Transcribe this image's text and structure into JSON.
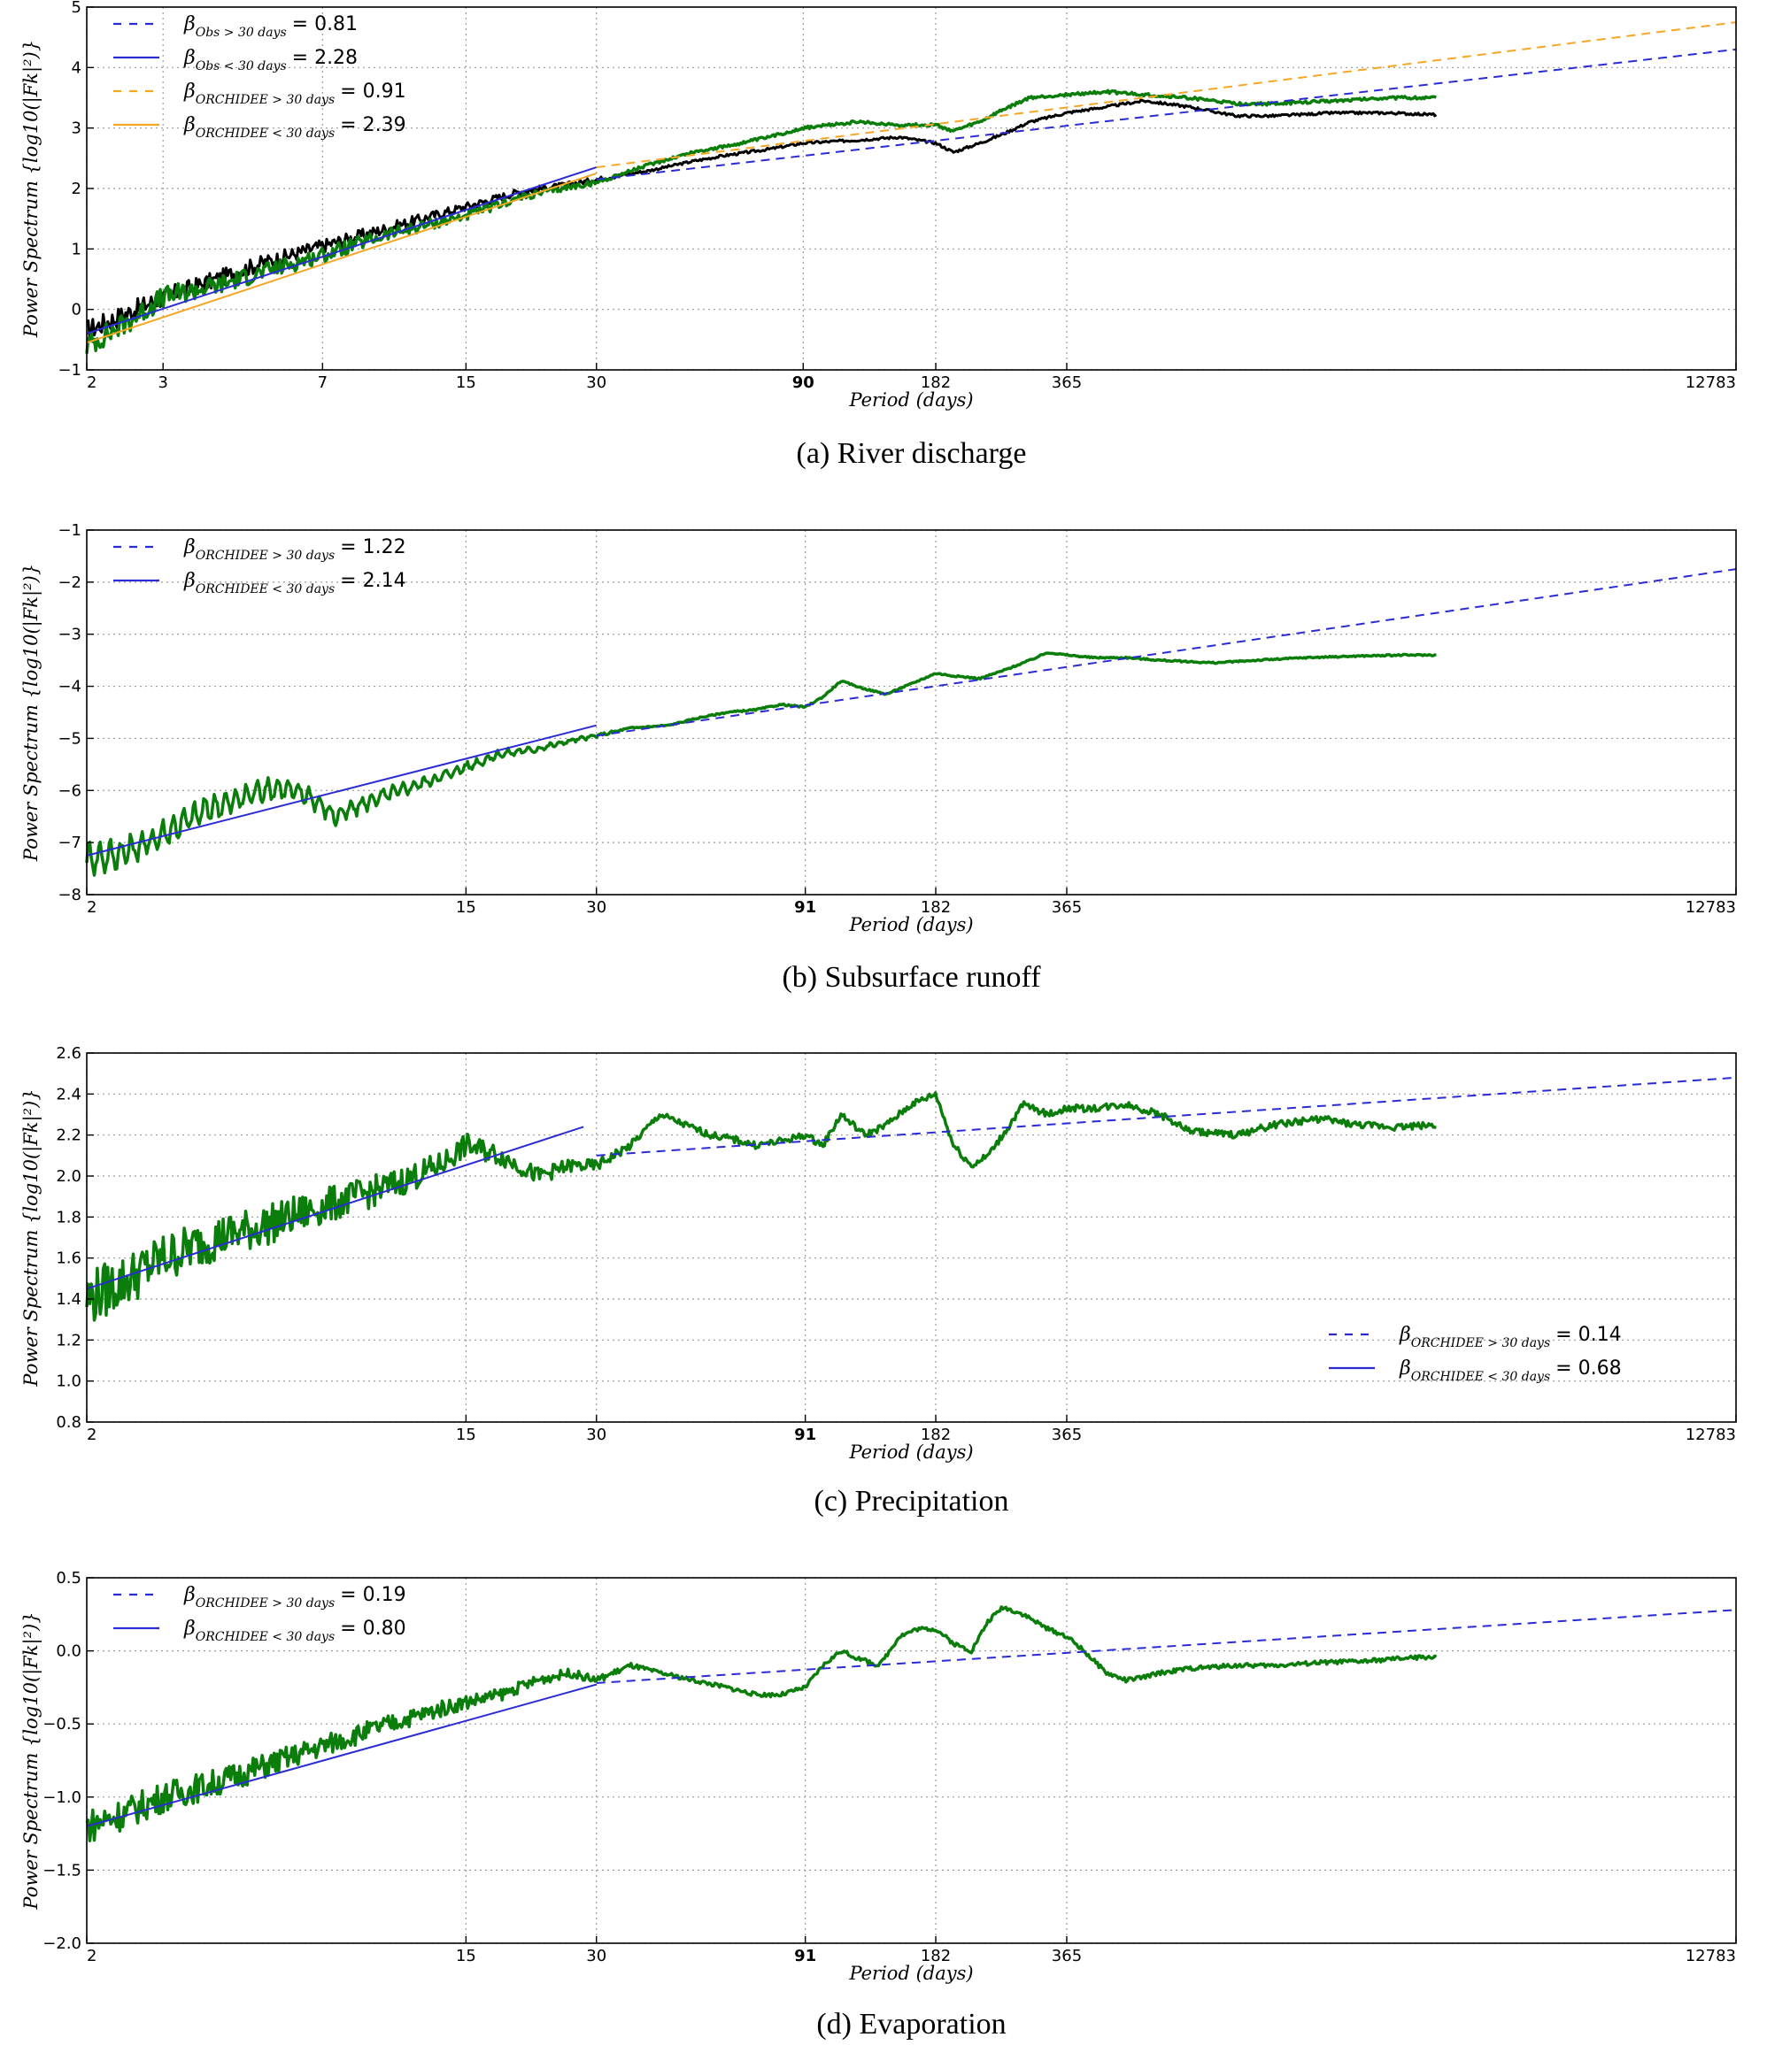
{
  "figure": {
    "captions": [
      "(a) River discharge",
      "(b) Subsurface runoff",
      "(c) Precipitation",
      "(d) Evaporation"
    ]
  },
  "colors": {
    "obs": "#000000",
    "orchidee": "#0a7d0a",
    "fit_blue": "#2b2bd6",
    "fit_orange": "#f5a623",
    "grid": "#9a9a9a"
  },
  "chart_data": [
    {
      "type": "line",
      "panel": "a",
      "caption": "(a) River discharge",
      "xscale": "log",
      "xlabel": "Period (days)",
      "ylabel": "Power Spectrum {log10(|Fk|²)}",
      "xlim": [
        2,
        12783
      ],
      "ylim": [
        -1,
        5
      ],
      "xticks": [
        2,
        3,
        7,
        15,
        30,
        90,
        182,
        365,
        12783
      ],
      "xtick_labels": [
        "2",
        "3",
        "7",
        "15",
        "30",
        "90",
        "182",
        "365",
        "12783"
      ],
      "yticks": [
        -1,
        0,
        1,
        2,
        3,
        4,
        5
      ],
      "ytick_labels": [
        "−1",
        "0",
        "1",
        "2",
        "3",
        "4",
        "5"
      ],
      "grid": true,
      "legend_position": "upper-left",
      "legend": [
        {
          "sym": "β",
          "sub": "Obs > 30 days",
          "value": "= 0.81",
          "color": "#2b2bd6",
          "dash": true
        },
        {
          "sym": "β",
          "sub": "Obs < 30 days",
          "value": "= 2.28",
          "color": "#2b2bd6",
          "dash": false
        },
        {
          "sym": "β",
          "sub": "ORCHIDEE > 30 days",
          "value": "= 0.91",
          "color": "#f5a623",
          "dash": true
        },
        {
          "sym": "β",
          "sub": "ORCHIDEE < 30 days",
          "value": "= 2.39",
          "color": "#f5a623",
          "dash": false
        }
      ],
      "series": [
        {
          "role": "obs",
          "color": "#000000",
          "width": 3,
          "x": [
            2,
            2.5,
            3,
            4,
            5,
            7,
            10,
            15,
            20,
            25,
            30,
            40,
            50,
            60,
            75,
            90,
            120,
            150,
            182,
            200,
            230,
            260,
            300,
            365,
            450,
            550,
            700,
            900,
            1100,
            1500,
            2000,
            2600
          ],
          "y": [
            -0.35,
            -0.05,
            0.2,
            0.5,
            0.75,
            1.05,
            1.35,
            1.7,
            1.95,
            2.05,
            2.15,
            2.3,
            2.45,
            2.55,
            2.65,
            2.75,
            2.8,
            2.85,
            2.75,
            2.6,
            2.75,
            2.9,
            3.1,
            3.25,
            3.35,
            3.45,
            3.35,
            3.2,
            3.2,
            3.25,
            3.25,
            3.22
          ],
          "noise": 0.18
        },
        {
          "role": "orchidee",
          "color": "#0a7d0a",
          "width": 3.5,
          "x": [
            2,
            2.5,
            3,
            4,
            5,
            7,
            10,
            15,
            20,
            25,
            30,
            40,
            50,
            60,
            75,
            90,
            120,
            150,
            182,
            200,
            230,
            260,
            300,
            365,
            450,
            550,
            700,
            900,
            1100,
            1500,
            2000,
            2600
          ],
          "y": [
            -0.6,
            -0.2,
            0.2,
            0.4,
            0.6,
            0.9,
            1.25,
            1.55,
            1.85,
            2.0,
            2.1,
            2.4,
            2.6,
            2.7,
            2.85,
            3.0,
            3.1,
            3.05,
            3.05,
            2.95,
            3.1,
            3.3,
            3.5,
            3.55,
            3.6,
            3.55,
            3.5,
            3.4,
            3.4,
            3.45,
            3.5,
            3.5
          ],
          "noise": 0.2
        }
      ],
      "fits": [
        {
          "color": "#2b2bd6",
          "dash": false,
          "x": [
            2,
            30
          ],
          "y": [
            -0.4,
            2.35
          ]
        },
        {
          "color": "#f5a623",
          "dash": false,
          "x": [
            2,
            30
          ],
          "y": [
            -0.55,
            2.25
          ]
        },
        {
          "color": "#2b2bd6",
          "dash": true,
          "x": [
            30,
            12783
          ],
          "y": [
            2.15,
            4.3
          ]
        },
        {
          "color": "#f5a623",
          "dash": true,
          "x": [
            30,
            12783
          ],
          "y": [
            2.35,
            4.75
          ]
        }
      ]
    },
    {
      "type": "line",
      "panel": "b",
      "caption": "(b) Subsurface runoff",
      "xscale": "log",
      "xlabel": "Period (days)",
      "ylabel": "Power Spectrum {log10(|Fk|²)}",
      "xlim": [
        2,
        12783
      ],
      "ylim": [
        -8,
        -1
      ],
      "xticks": [
        2,
        15,
        30,
        91,
        182,
        365,
        12783
      ],
      "xtick_labels": [
        "2",
        "15",
        "30",
        "91",
        "182",
        "365",
        "12783"
      ],
      "yticks": [
        -8,
        -7,
        -6,
        -5,
        -4,
        -3,
        -2,
        -1
      ],
      "ytick_labels": [
        "−8",
        "−7",
        "−6",
        "−5",
        "−4",
        "−3",
        "−2",
        "−1"
      ],
      "grid": true,
      "legend_position": "upper-left",
      "legend": [
        {
          "sym": "β",
          "sub": "ORCHIDEE > 30 days",
          "value": "= 1.22",
          "color": "#2b2bd6",
          "dash": true
        },
        {
          "sym": "β",
          "sub": "ORCHIDEE < 30 days",
          "value": "= 2.14",
          "color": "#2b2bd6",
          "dash": false
        }
      ],
      "series": [
        {
          "role": "orchidee",
          "color": "#0a7d0a",
          "width": 3.5,
          "x": [
            2,
            2.3,
            2.7,
            3.2,
            3.8,
            4.4,
            5.0,
            5.6,
            6.5,
            7.5,
            9,
            11,
            13,
            15,
            18,
            22,
            26,
            30,
            36,
            44,
            52,
            60,
            70,
            80,
            91,
            100,
            110,
            125,
            140,
            160,
            182,
            200,
            230,
            260,
            300,
            330,
            365,
            420,
            500,
            600,
            800,
            1000,
            1300,
            1700,
            2200,
            2600
          ],
          "y": [
            -7.3,
            -7.25,
            -7.05,
            -6.7,
            -6.35,
            -6.2,
            -6.0,
            -5.95,
            -6.1,
            -6.5,
            -6.2,
            -5.95,
            -5.75,
            -5.55,
            -5.3,
            -5.2,
            -5.05,
            -4.95,
            -4.8,
            -4.75,
            -4.6,
            -4.5,
            -4.45,
            -4.35,
            -4.4,
            -4.2,
            -3.9,
            -4.05,
            -4.15,
            -3.95,
            -3.75,
            -3.8,
            -3.85,
            -3.7,
            -3.5,
            -3.35,
            -3.4,
            -3.45,
            -3.45,
            -3.5,
            -3.55,
            -3.5,
            -3.45,
            -3.42,
            -3.4,
            -3.4
          ],
          "noise": 0.12,
          "wave": 0.3
        },
        {
          "role": "fit",
          "color": "#2b2bd6",
          "width": 2,
          "dash": false,
          "x": [
            2,
            30
          ],
          "y": [
            -7.25,
            -4.75
          ]
        }
      ],
      "fits": [
        {
          "color": "#2b2bd6",
          "dash": false,
          "x": [
            2,
            30
          ],
          "y": [
            -7.25,
            -4.75
          ]
        },
        {
          "color": "#2b2bd6",
          "dash": true,
          "x": [
            30,
            12783
          ],
          "y": [
            -4.95,
            -1.75
          ]
        }
      ]
    },
    {
      "type": "line",
      "panel": "c",
      "caption": "(c) Precipitation",
      "xscale": "log",
      "xlabel": "Period (days)",
      "ylabel": "Power Spectrum {log10(|Fk|²)}",
      "xlim": [
        2,
        12783
      ],
      "ylim": [
        0.8,
        2.6
      ],
      "xticks": [
        2,
        15,
        30,
        91,
        182,
        365,
        12783
      ],
      "xtick_labels": [
        "2",
        "15",
        "30",
        "91",
        "182",
        "365",
        "12783"
      ],
      "yticks": [
        0.8,
        1.0,
        1.2,
        1.4,
        1.6,
        1.8,
        2.0,
        2.2,
        2.4,
        2.6
      ],
      "ytick_labels": [
        "0.8",
        "1.0",
        "1.2",
        "1.4",
        "1.6",
        "1.8",
        "2.0",
        "2.2",
        "2.4",
        "2.6"
      ],
      "grid": true,
      "legend_position": "lower-right",
      "legend": [
        {
          "sym": "β",
          "sub": "ORCHIDEE > 30 days",
          "value": "= 0.14",
          "color": "#2b2bd6",
          "dash": true
        },
        {
          "sym": "β",
          "sub": "ORCHIDEE < 30 days",
          "value": "= 0.68",
          "color": "#2b2bd6",
          "dash": false
        }
      ],
      "series": [
        {
          "role": "orchidee",
          "color": "#0a7d0a",
          "width": 3.5,
          "x": [
            2,
            2.5,
            3,
            4,
            5,
            7,
            10,
            13,
            15,
            18,
            22,
            26,
            30,
            36,
            42,
            48,
            55,
            62,
            70,
            80,
            91,
            100,
            110,
            125,
            140,
            160,
            182,
            200,
            220,
            240,
            260,
            290,
            330,
            365,
            420,
            500,
            600,
            700,
            900,
            1100,
            1400,
            1700,
            2100,
            2600
          ],
          "y": [
            1.4,
            1.5,
            1.6,
            1.7,
            1.75,
            1.85,
            1.95,
            2.05,
            2.15,
            2.1,
            2.0,
            2.05,
            2.05,
            2.15,
            2.3,
            2.25,
            2.2,
            2.18,
            2.15,
            2.17,
            2.2,
            2.15,
            2.3,
            2.2,
            2.25,
            2.35,
            2.4,
            2.15,
            2.05,
            2.1,
            2.2,
            2.35,
            2.3,
            2.33,
            2.33,
            2.35,
            2.3,
            2.22,
            2.2,
            2.25,
            2.28,
            2.25,
            2.24,
            2.25
          ],
          "noise": 0.14
        }
      ],
      "fits": [
        {
          "color": "#2b2bd6",
          "dash": false,
          "x": [
            2,
            28
          ],
          "y": [
            1.45,
            2.24
          ]
        },
        {
          "color": "#2b2bd6",
          "dash": true,
          "x": [
            30,
            12783
          ],
          "y": [
            2.1,
            2.48
          ]
        }
      ]
    },
    {
      "type": "line",
      "panel": "d",
      "caption": "(d) Evaporation",
      "xscale": "log",
      "xlabel": "Period (days)",
      "ylabel": "Power Spectrum {log10(|Fk|²)}",
      "xlim": [
        2,
        12783
      ],
      "ylim": [
        -2.0,
        0.5
      ],
      "xticks": [
        2,
        15,
        30,
        91,
        182,
        365,
        12783
      ],
      "xtick_labels": [
        "2",
        "15",
        "30",
        "91",
        "182",
        "365",
        "12783"
      ],
      "yticks": [
        -2.0,
        -1.5,
        -1.0,
        -0.5,
        0.0,
        0.5
      ],
      "ytick_labels": [
        "−2.0",
        "−1.5",
        "−1.0",
        "−0.5",
        "0.0",
        "0.5"
      ],
      "grid": true,
      "legend_position": "upper-left",
      "legend": [
        {
          "sym": "β",
          "sub": "ORCHIDEE > 30 days",
          "value": "= 0.19",
          "color": "#2b2bd6",
          "dash": true
        },
        {
          "sym": "β",
          "sub": "ORCHIDEE < 30 days",
          "value": "= 0.80",
          "color": "#2b2bd6",
          "dash": false
        }
      ],
      "series": [
        {
          "role": "orchidee",
          "color": "#0a7d0a",
          "width": 3.5,
          "x": [
            2,
            2.5,
            3,
            4,
            5,
            7,
            10,
            13,
            15,
            18,
            22,
            26,
            30,
            36,
            42,
            50,
            60,
            70,
            80,
            91,
            100,
            110,
            120,
            135,
            150,
            165,
            182,
            200,
            220,
            240,
            260,
            290,
            330,
            365,
            400,
            450,
            500,
            550,
            600,
            700,
            900,
            1100,
            1400,
            1800,
            2200,
            2600
          ],
          "y": [
            -1.2,
            -1.1,
            -1.0,
            -0.9,
            -0.8,
            -0.65,
            -0.5,
            -0.4,
            -0.35,
            -0.3,
            -0.2,
            -0.15,
            -0.2,
            -0.1,
            -0.15,
            -0.2,
            -0.25,
            -0.3,
            -0.3,
            -0.25,
            -0.1,
            0.0,
            -0.05,
            -0.1,
            0.1,
            0.15,
            0.15,
            0.05,
            0.0,
            0.2,
            0.3,
            0.25,
            0.15,
            0.1,
            0.0,
            -0.15,
            -0.2,
            -0.18,
            -0.15,
            -0.12,
            -0.1,
            -0.1,
            -0.08,
            -0.07,
            -0.05,
            -0.04
          ],
          "noise": 0.12
        }
      ],
      "fits": [
        {
          "color": "#2b2bd6",
          "dash": false,
          "x": [
            2,
            30
          ],
          "y": [
            -1.2,
            -0.23
          ]
        },
        {
          "color": "#2b2bd6",
          "dash": true,
          "x": [
            30,
            12783
          ],
          "y": [
            -0.22,
            0.28
          ]
        }
      ]
    }
  ]
}
